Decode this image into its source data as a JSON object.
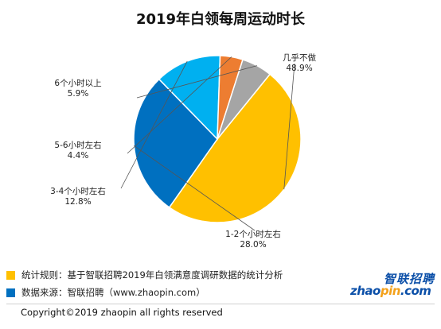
{
  "title": "2019年白领每周运动时长",
  "chart_data": {
    "type": "pie",
    "title": "2019年白领每周运动时长",
    "start_angle_deg": -51,
    "slices": [
      {
        "label": "几乎不做",
        "value": 48.9,
        "pct_label": "48.9%",
        "color": "#ffc000"
      },
      {
        "label": "1-2个小时左右",
        "value": 28.0,
        "pct_label": "28.0%",
        "color": "#0070c0"
      },
      {
        "label": "3-4个小时左右",
        "value": 12.8,
        "pct_label": "12.8%",
        "color": "#00b0f0"
      },
      {
        "label": "5-6小时左右",
        "value": 4.4,
        "pct_label": "4.4%",
        "color": "#ed7d31"
      },
      {
        "label": "6个小时以上",
        "value": 5.9,
        "pct_label": "5.9%",
        "color": "#a5a5a5"
      }
    ]
  },
  "footnotes": [
    {
      "text": "统计规则：基于智联招聘2019年白领满意度调研数据的统计分析",
      "color": "#ffc000"
    },
    {
      "text": "数据来源：智联招聘（www.zhaopin.com）",
      "color": "#0070c0"
    }
  ],
  "logo": {
    "cn": "智联招聘",
    "en_part1": "zhao",
    "en_part2": "pin",
    "en_part3": ".com"
  },
  "copyright": "Copyright©2019 zhaopin all rights reserved"
}
